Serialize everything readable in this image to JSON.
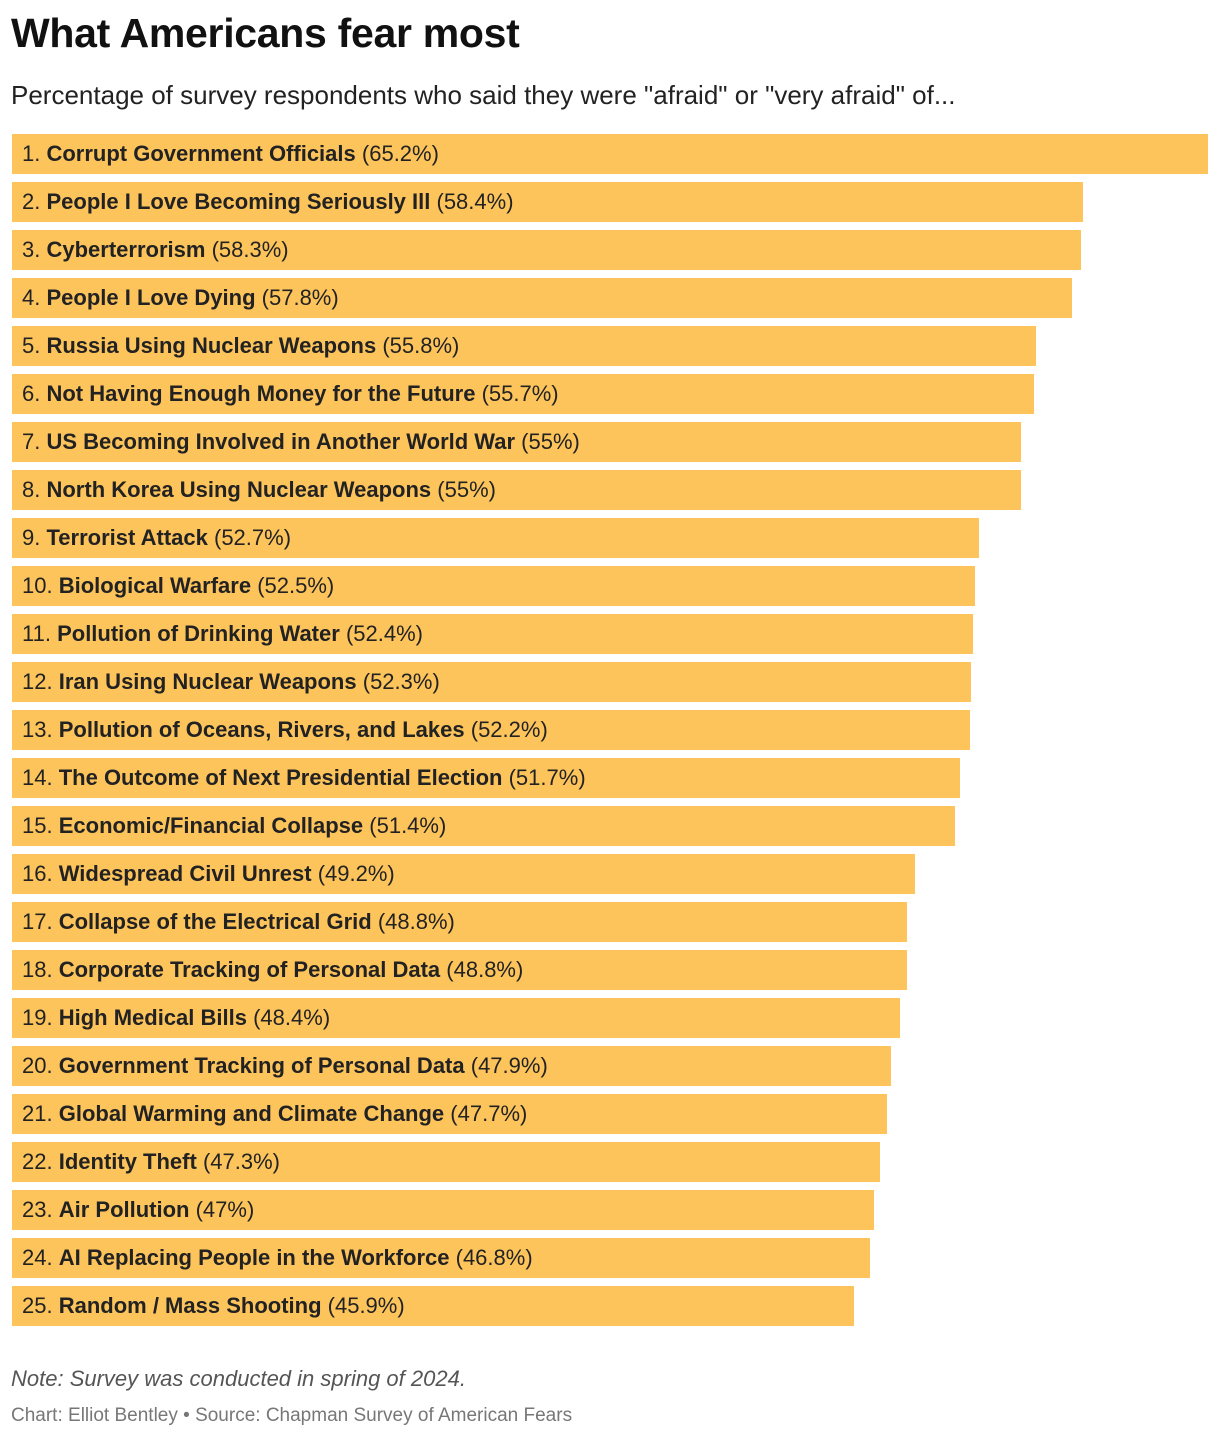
{
  "title": "What Americans fear most",
  "subtitle": "Percentage of survey respondents who said they were \"afraid\" or \"very afraid\" of...",
  "note": "Note: Survey was conducted in spring of 2024.",
  "credit": "Chart: Elliot Bentley • Source: Chapman Survey of American Fears",
  "colors": {
    "bar": "#fdc45c"
  },
  "chart_data": {
    "type": "bar",
    "orientation": "horizontal",
    "xlim": [
      0,
      65.2
    ],
    "bars": [
      {
        "rank": "1.",
        "label": "Corrupt Government Officials",
        "value": 65.2,
        "value_label": "(65.2%)"
      },
      {
        "rank": "2.",
        "label": "People I Love Becoming Seriously Ill",
        "value": 58.4,
        "value_label": "(58.4%)"
      },
      {
        "rank": "3.",
        "label": "Cyberterrorism",
        "value": 58.3,
        "value_label": "(58.3%)"
      },
      {
        "rank": "4.",
        "label": "People I Love Dying",
        "value": 57.8,
        "value_label": "(57.8%)"
      },
      {
        "rank": "5.",
        "label": "Russia Using Nuclear Weapons",
        "value": 55.8,
        "value_label": "(55.8%)"
      },
      {
        "rank": "6.",
        "label": "Not Having Enough Money for the Future",
        "value": 55.7,
        "value_label": "(55.7%)"
      },
      {
        "rank": "7.",
        "label": "US Becoming Involved in Another World War",
        "value": 55,
        "value_label": "(55%)"
      },
      {
        "rank": "8.",
        "label": "North Korea Using Nuclear Weapons",
        "value": 55,
        "value_label": "(55%)"
      },
      {
        "rank": "9.",
        "label": "Terrorist Attack",
        "value": 52.7,
        "value_label": "(52.7%)"
      },
      {
        "rank": "10.",
        "label": "Biological Warfare",
        "value": 52.5,
        "value_label": "(52.5%)"
      },
      {
        "rank": "11.",
        "label": "Pollution of Drinking Water",
        "value": 52.4,
        "value_label": "(52.4%)"
      },
      {
        "rank": "12.",
        "label": "Iran Using Nuclear Weapons",
        "value": 52.3,
        "value_label": "(52.3%)"
      },
      {
        "rank": "13.",
        "label": "Pollution of Oceans, Rivers, and Lakes",
        "value": 52.2,
        "value_label": "(52.2%)"
      },
      {
        "rank": "14.",
        "label": "The Outcome of Next Presidential Election",
        "value": 51.7,
        "value_label": "(51.7%)"
      },
      {
        "rank": "15.",
        "label": "Economic/Financial Collapse",
        "value": 51.4,
        "value_label": "(51.4%)"
      },
      {
        "rank": "16.",
        "label": "Widespread Civil Unrest",
        "value": 49.2,
        "value_label": "(49.2%)"
      },
      {
        "rank": "17.",
        "label": "Collapse of the Electrical Grid",
        "value": 48.8,
        "value_label": "(48.8%)"
      },
      {
        "rank": "18.",
        "label": "Corporate Tracking of Personal Data",
        "value": 48.8,
        "value_label": "(48.8%)"
      },
      {
        "rank": "19.",
        "label": "High Medical Bills",
        "value": 48.4,
        "value_label": "(48.4%)"
      },
      {
        "rank": "20.",
        "label": "Government Tracking of Personal Data",
        "value": 47.9,
        "value_label": "(47.9%)"
      },
      {
        "rank": "21.",
        "label": "Global Warming and Climate Change",
        "value": 47.7,
        "value_label": "(47.7%)"
      },
      {
        "rank": "22.",
        "label": "Identity Theft",
        "value": 47.3,
        "value_label": "(47.3%)"
      },
      {
        "rank": "23.",
        "label": "Air Pollution",
        "value": 47,
        "value_label": "(47%)"
      },
      {
        "rank": "24.",
        "label": "AI Replacing People in the Workforce",
        "value": 46.8,
        "value_label": "(46.8%)"
      },
      {
        "rank": "25.",
        "label": "Random / Mass Shooting",
        "value": 45.9,
        "value_label": "(45.9%)"
      }
    ]
  }
}
